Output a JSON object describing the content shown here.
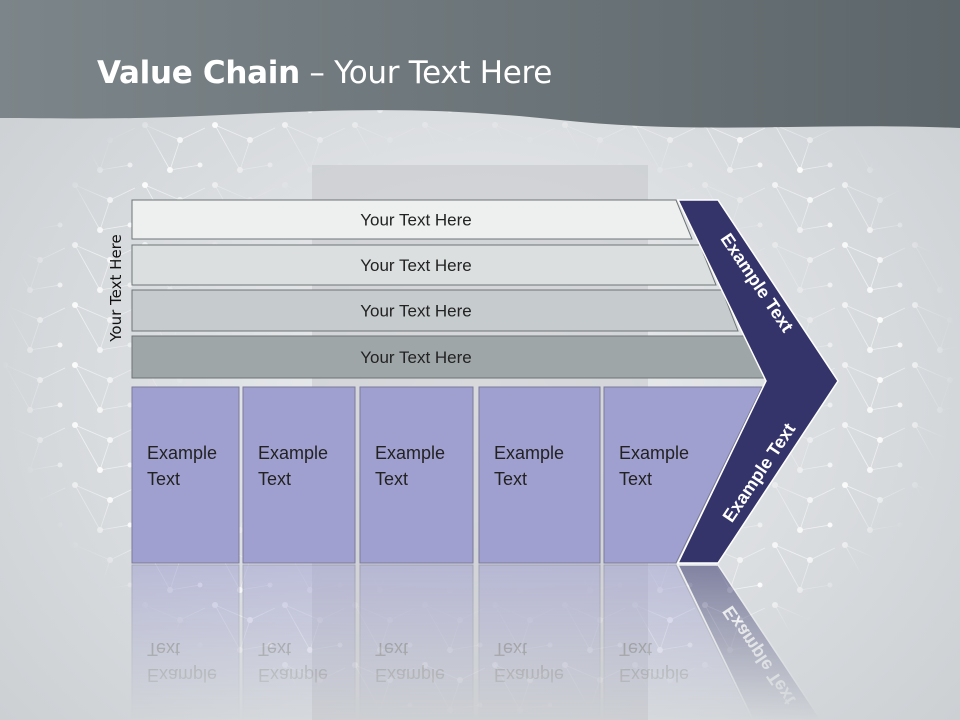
{
  "header": {
    "title_bold": "Value Chain",
    "title_rest": " – Your Text Here"
  },
  "side_label": "Your Text Here",
  "support_bars": [
    "Your Text Here",
    "Your Text Here",
    "Your Text Here",
    "Your Text Here"
  ],
  "primary_boxes": [
    {
      "line1": "Example",
      "line2": "Text"
    },
    {
      "line1": "Example",
      "line2": "Text"
    },
    {
      "line1": "Example",
      "line2": "Text"
    },
    {
      "line1": "Example",
      "line2": "Text"
    },
    {
      "line1": "Example",
      "line2": "Text"
    }
  ],
  "chevron": {
    "top_label": "Example Text",
    "bottom_label": "Example Text"
  },
  "colors": {
    "header": "#6f787c",
    "bar1": "#eef0f0",
    "bar2": "#dcdfe0",
    "bar3": "#c6cbcd",
    "bar4": "#9fa6a8",
    "box": "#a0a0d0",
    "chevron": "#34346a"
  }
}
